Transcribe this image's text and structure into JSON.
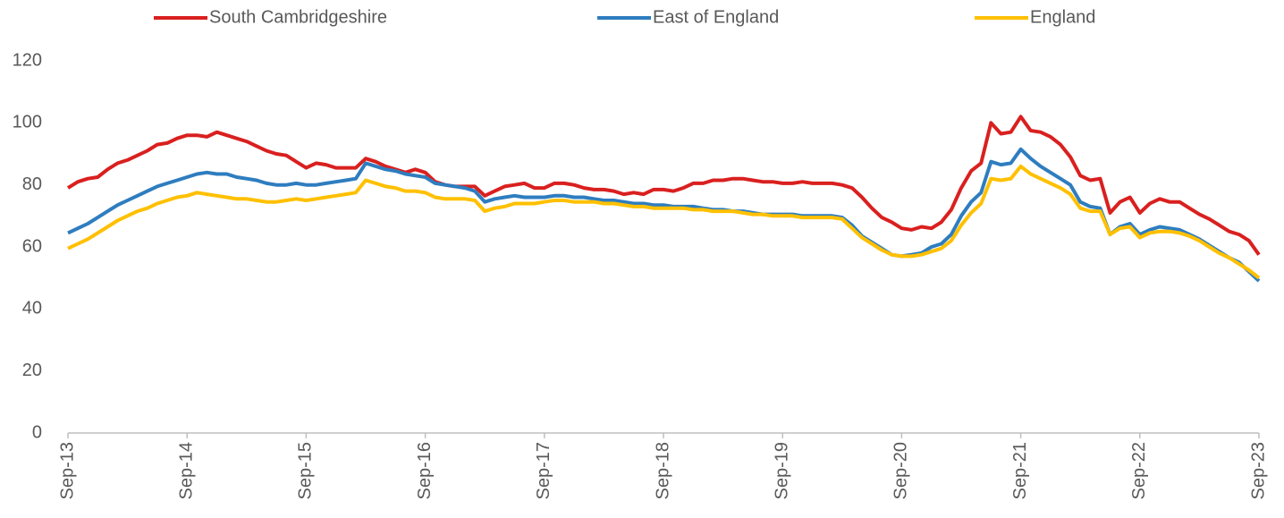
{
  "chart_data": {
    "type": "line",
    "categories": [
      "Sep-13",
      null,
      null,
      null,
      null,
      null,
      null,
      null,
      null,
      null,
      null,
      null,
      "Sep-14",
      null,
      null,
      null,
      null,
      null,
      null,
      null,
      null,
      null,
      null,
      null,
      "Sep-15",
      null,
      null,
      null,
      null,
      null,
      null,
      null,
      null,
      null,
      null,
      null,
      "Sep-16",
      null,
      null,
      null,
      null,
      null,
      null,
      null,
      null,
      null,
      null,
      null,
      "Sep-17",
      null,
      null,
      null,
      null,
      null,
      null,
      null,
      null,
      null,
      null,
      null,
      "Sep-18",
      null,
      null,
      null,
      null,
      null,
      null,
      null,
      null,
      null,
      null,
      null,
      "Sep-19",
      null,
      null,
      null,
      null,
      null,
      null,
      null,
      null,
      null,
      null,
      null,
      "Sep-20",
      null,
      null,
      null,
      null,
      null,
      null,
      null,
      null,
      null,
      null,
      null,
      "Sep-21",
      null,
      null,
      null,
      null,
      null,
      null,
      null,
      null,
      null,
      null,
      null,
      "Sep-22",
      null,
      null,
      null,
      null,
      null,
      null,
      null,
      null,
      null,
      null,
      null,
      "Sep-23"
    ],
    "series": [
      {
        "name": "South Cambridgeshire",
        "color": "#d9201f",
        "values": [
          79,
          81,
          82,
          82.5,
          85,
          87,
          88,
          89.5,
          91,
          93,
          93.5,
          95,
          96,
          96,
          95.5,
          97,
          96,
          95,
          94,
          92.5,
          91,
          90,
          89.5,
          87.5,
          85.5,
          87,
          86.5,
          85.5,
          85.5,
          85.5,
          88.5,
          87.5,
          86,
          85,
          84,
          85,
          84,
          81,
          80,
          79.5,
          79.5,
          79.5,
          76.5,
          78,
          79.5,
          80,
          80.5,
          79,
          79,
          80.5,
          80.5,
          80,
          79,
          78.5,
          78.5,
          78,
          77,
          77.5,
          77,
          78.5,
          78.5,
          78,
          79,
          80.5,
          80.5,
          81.5,
          81.5,
          82,
          82,
          81.5,
          81,
          81,
          80.5,
          80.5,
          81,
          80.5,
          80.5,
          80.5,
          80,
          79,
          76,
          72.5,
          69.5,
          68,
          66,
          65.5,
          66.5,
          66,
          68,
          72,
          79,
          84.5,
          87,
          100,
          96.5,
          97,
          102,
          97.5,
          97,
          95.5,
          93,
          89,
          83,
          81.5,
          82,
          71,
          74.5,
          76,
          71,
          74,
          75.5,
          74.5,
          74.5,
          72.5,
          70.5,
          69,
          67,
          65,
          64,
          62,
          57.5
        ]
      },
      {
        "name": "East of England",
        "color": "#2e7dbf",
        "values": [
          64.5,
          66,
          67.5,
          69.5,
          71.5,
          73.5,
          75,
          76.5,
          78,
          79.5,
          80.5,
          81.5,
          82.5,
          83.5,
          84,
          83.5,
          83.5,
          82.5,
          82,
          81.5,
          80.5,
          80,
          80,
          80.5,
          80,
          80,
          80.5,
          81,
          81.5,
          82,
          87,
          86,
          85,
          84.5,
          83.5,
          83,
          82.5,
          80.5,
          80,
          79.5,
          79,
          78,
          74.5,
          75.5,
          76,
          76.5,
          76,
          76,
          76,
          76.5,
          76.5,
          76,
          76,
          75.5,
          75,
          75,
          74.5,
          74,
          74,
          73.5,
          73.5,
          73,
          73,
          73,
          72.5,
          72,
          72,
          71.5,
          71.5,
          71,
          70.5,
          70.5,
          70.5,
          70.5,
          70,
          70,
          70,
          70,
          69.5,
          67,
          63.5,
          61.5,
          59.5,
          57.5,
          57,
          57.5,
          58,
          60,
          61,
          64,
          70,
          74.5,
          77.5,
          87.5,
          86.5,
          87,
          91.5,
          88.5,
          86,
          84,
          82,
          80,
          74.5,
          73,
          72.5,
          64,
          66.5,
          67.5,
          64,
          65.5,
          66.5,
          66,
          65.5,
          64,
          62.5,
          60.5,
          58.5,
          56.5,
          55,
          52,
          49
        ]
      },
      {
        "name": "England",
        "color": "#ffc000",
        "values": [
          59.5,
          61,
          62.5,
          64.5,
          66.5,
          68.5,
          70,
          71.5,
          72.5,
          74,
          75,
          76,
          76.5,
          77.5,
          77,
          76.5,
          76,
          75.5,
          75.5,
          75,
          74.5,
          74.5,
          75,
          75.5,
          75,
          75.5,
          76,
          76.5,
          77,
          77.5,
          81.5,
          80.5,
          79.5,
          79,
          78,
          78,
          77.5,
          76,
          75.5,
          75.5,
          75.5,
          75,
          71.5,
          72.5,
          73,
          74,
          74,
          74,
          74.5,
          75,
          75,
          74.5,
          74.5,
          74.5,
          74,
          74,
          73.5,
          73,
          73,
          72.5,
          72.5,
          72.5,
          72.5,
          72,
          72,
          71.5,
          71.5,
          71.5,
          71,
          70.5,
          70.5,
          70,
          70,
          70,
          69.5,
          69.5,
          69.5,
          69.5,
          69,
          66,
          63,
          61,
          59,
          57.5,
          57,
          57,
          57.5,
          58.5,
          59.5,
          62,
          67,
          71,
          74,
          82,
          81.5,
          82,
          86,
          83.5,
          82,
          80.5,
          79,
          77,
          72.5,
          71.5,
          71.5,
          64,
          66,
          66.5,
          63,
          64.5,
          65,
          65,
          64.5,
          63.5,
          62,
          60,
          58,
          56.5,
          54.5,
          52.5,
          50
        ]
      }
    ],
    "ylim": [
      0,
      120
    ],
    "yticks": [
      0,
      20,
      40,
      60,
      80,
      100,
      120
    ],
    "grid": false
  }
}
